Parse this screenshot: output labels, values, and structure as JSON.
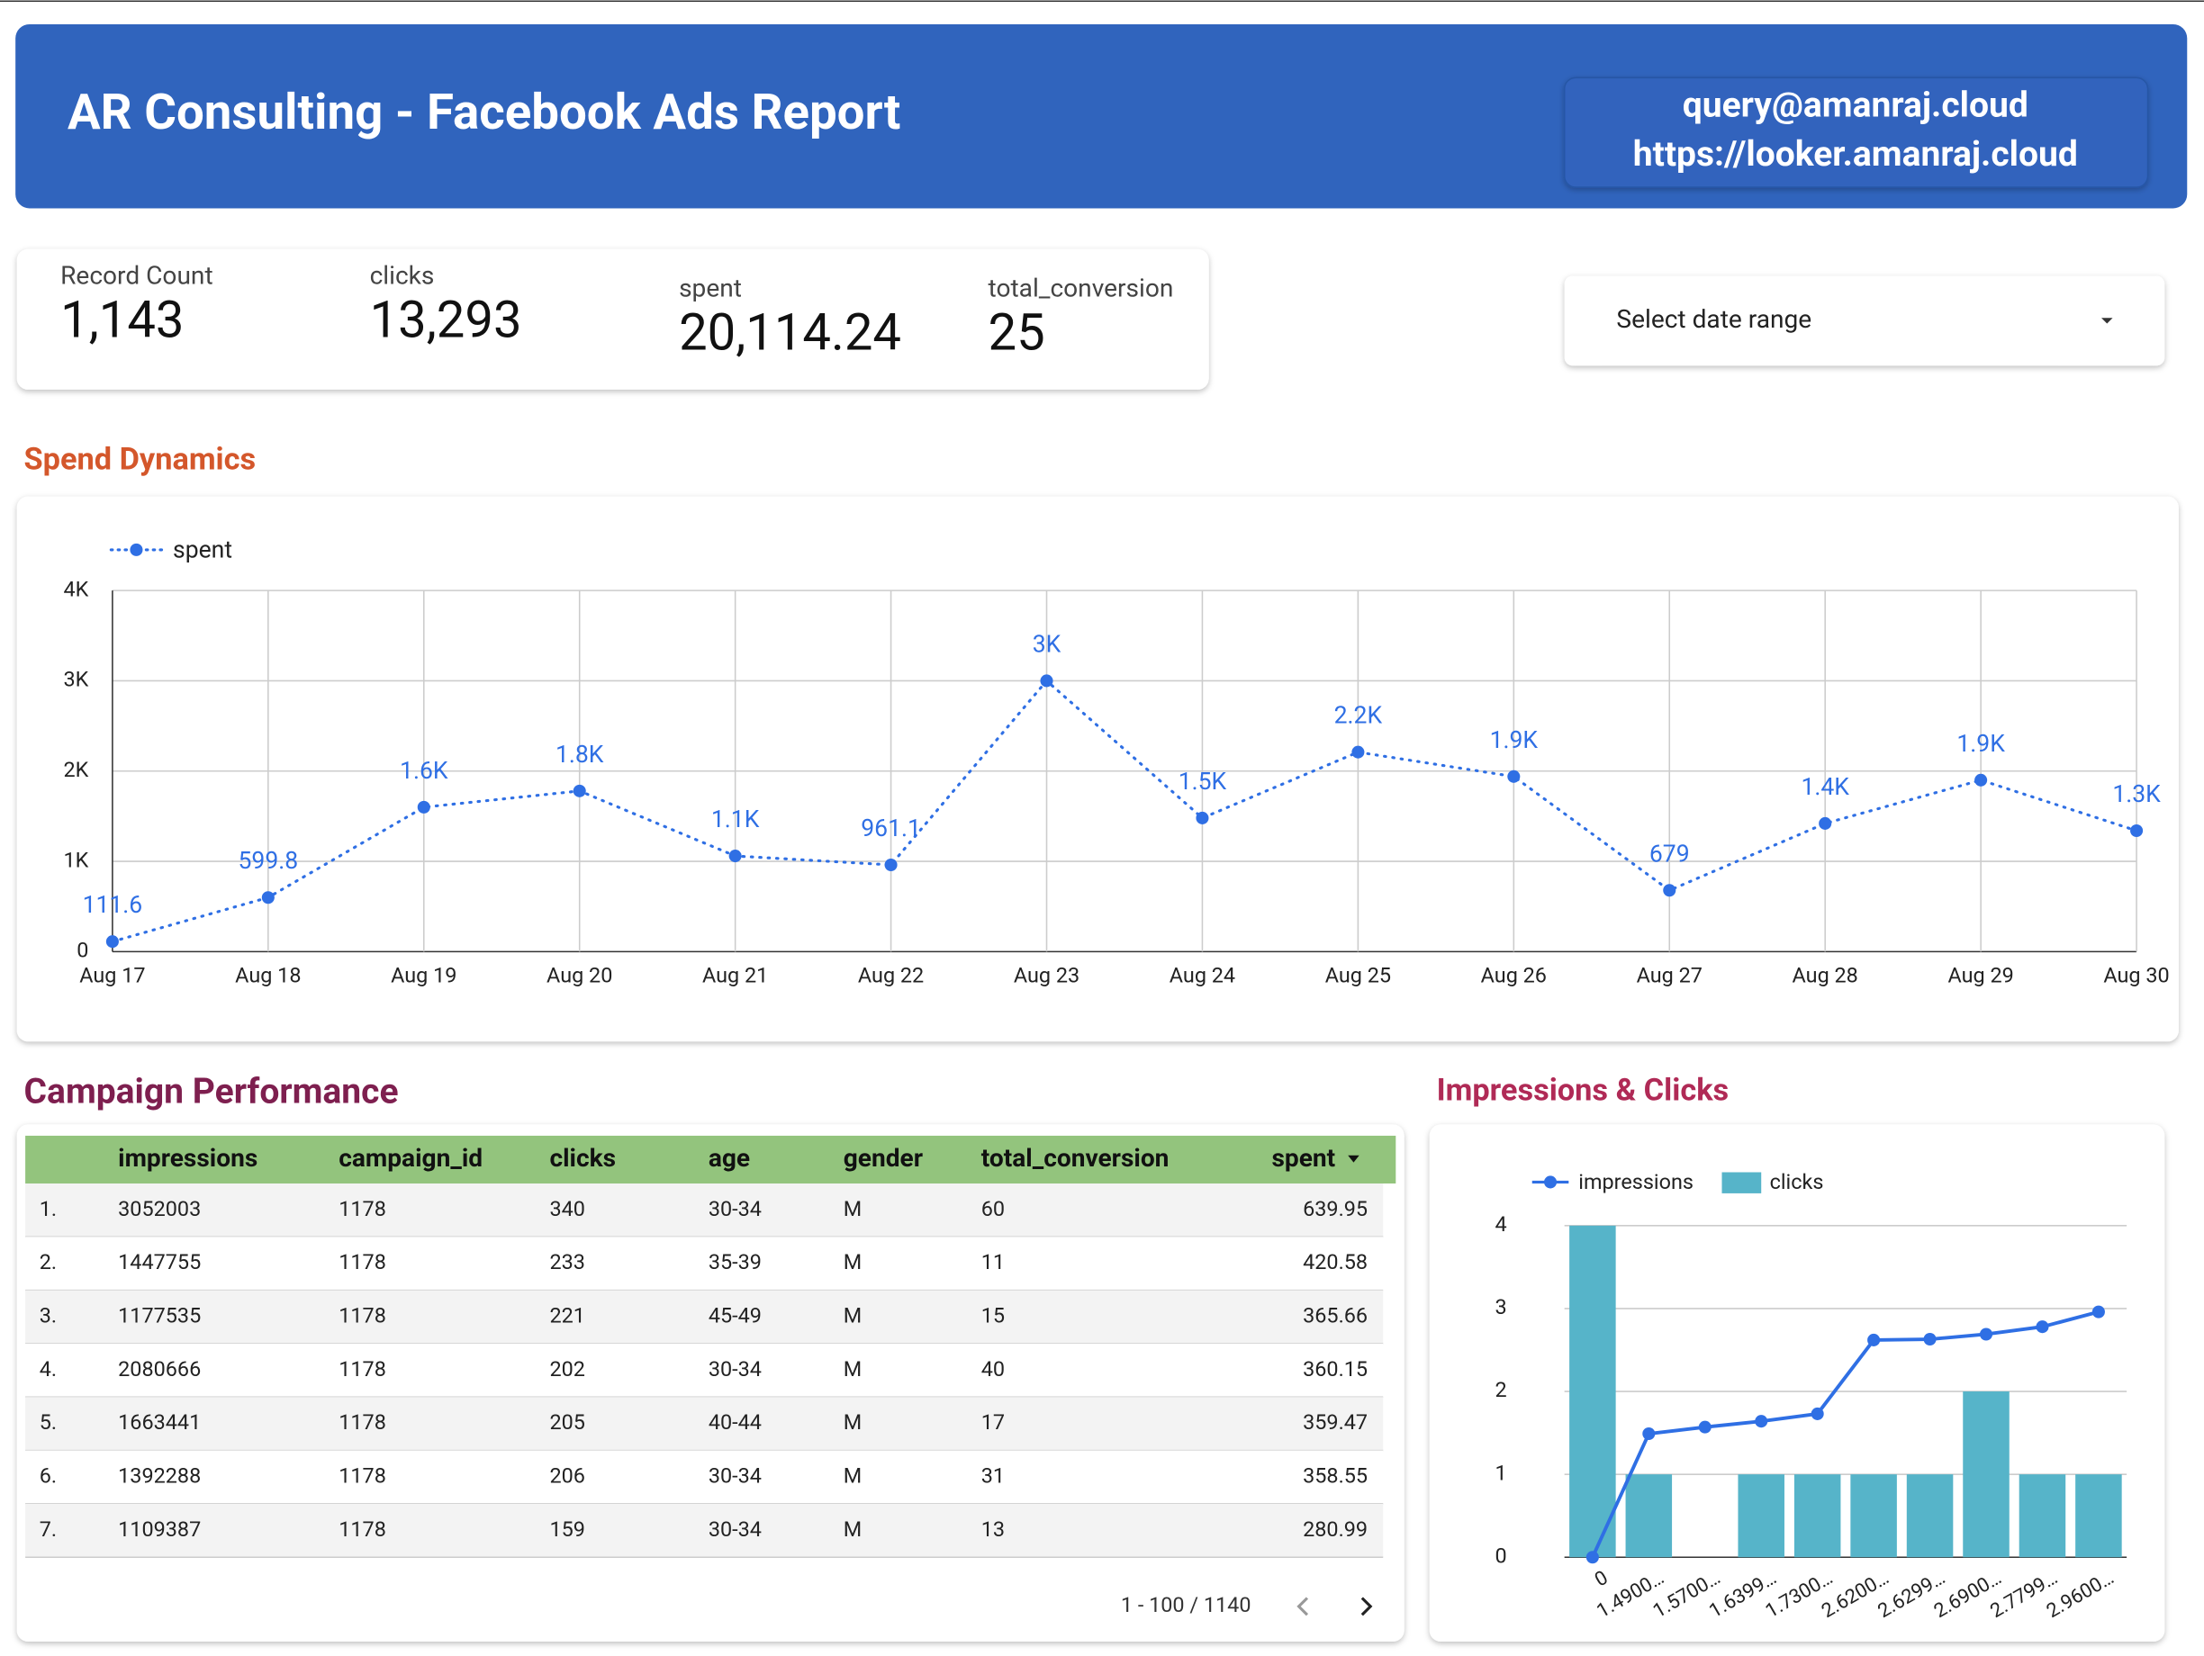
{
  "header": {
    "title": "AR Consulting - Facebook Ads Report",
    "email": "query@amanraj.cloud",
    "url": "https://looker.amanraj.cloud"
  },
  "scorecards": [
    {
      "label": "Record Count",
      "value": "1,143"
    },
    {
      "label": "clicks",
      "value": "13,293"
    },
    {
      "label": "spent",
      "value": "20,114.24"
    },
    {
      "label": "total_conversion",
      "value": "25"
    }
  ],
  "date_picker": {
    "label": "Select date range"
  },
  "sections": {
    "spend": "Spend Dynamics",
    "campaign": "Campaign Performance",
    "impressions": "Impressions & Clicks"
  },
  "table": {
    "columns": [
      "impressions",
      "campaign_id",
      "clicks",
      "age",
      "gender",
      "total_conversion",
      "spent"
    ],
    "rows": [
      [
        "1.",
        "3052003",
        "1178",
        "340",
        "30-34",
        "M",
        "60",
        "639.95"
      ],
      [
        "2.",
        "1447755",
        "1178",
        "233",
        "35-39",
        "M",
        "11",
        "420.58"
      ],
      [
        "3.",
        "1177535",
        "1178",
        "221",
        "45-49",
        "M",
        "15",
        "365.66"
      ],
      [
        "4.",
        "2080666",
        "1178",
        "202",
        "30-34",
        "M",
        "40",
        "360.15"
      ],
      [
        "5.",
        "1663441",
        "1178",
        "205",
        "40-44",
        "M",
        "17",
        "359.47"
      ],
      [
        "6.",
        "1392288",
        "1178",
        "206",
        "30-34",
        "M",
        "31",
        "358.55"
      ],
      [
        "7.",
        "1109387",
        "1178",
        "159",
        "30-34",
        "M",
        "13",
        "280.99"
      ]
    ],
    "pagination": "1 - 100 / 1140"
  },
  "chart_data": [
    {
      "type": "line",
      "categories": [
        "Aug 17",
        "Aug 18",
        "Aug 19",
        "Aug 20",
        "Aug 21",
        "Aug 22",
        "Aug 23",
        "Aug 24",
        "Aug 25",
        "Aug 26",
        "Aug 27",
        "Aug 28",
        "Aug 29",
        "Aug 30"
      ],
      "series": [
        {
          "name": "spent",
          "color": "#2f6fe4",
          "values": [
            111.6,
            599.8,
            1600,
            1780,
            1060,
            961.1,
            3000,
            1480,
            2210,
            1940,
            679,
            1420,
            1900,
            1340
          ],
          "value_labels": [
            "111.6",
            "599.8",
            "1.6K",
            "1.8K",
            "1.1K",
            "961.1",
            "3K",
            "1.5K",
            "2.2K",
            "1.9K",
            "679",
            "1.4K",
            "1.9K",
            "1.3K"
          ]
        }
      ],
      "ylim": [
        0,
        4000
      ],
      "yticks": [
        0,
        {
          "value": 1000,
          "label": "1K"
        },
        {
          "value": 2000,
          "label": "2K"
        },
        {
          "value": 3000,
          "label": "3K"
        },
        {
          "value": 4000,
          "label": "4K"
        }
      ],
      "grid": true,
      "legend": "top-left"
    },
    {
      "type": "combo",
      "categories": [
        "0",
        "1.4900…",
        "1.5700…",
        "1.6399…",
        "1.7300…",
        "2.6200…",
        "2.6299…",
        "2.6900…",
        "2.7799…",
        "2.9600…"
      ],
      "series": [
        {
          "name": "impressions",
          "color": "#2f6fe4",
          "mark": "line",
          "values": [
            0,
            1.49,
            1.57,
            1.64,
            1.73,
            2.62,
            2.63,
            2.69,
            2.78,
            2.96
          ]
        },
        {
          "name": "clicks",
          "color": "#56b4c9",
          "mark": "bar",
          "values": [
            4,
            1,
            0,
            1,
            1,
            1,
            1,
            2,
            1,
            1
          ]
        }
      ],
      "ylim": [
        0,
        4
      ],
      "yticks": [
        0,
        1,
        2,
        3,
        4
      ],
      "grid": true,
      "legend": "top-left"
    }
  ]
}
